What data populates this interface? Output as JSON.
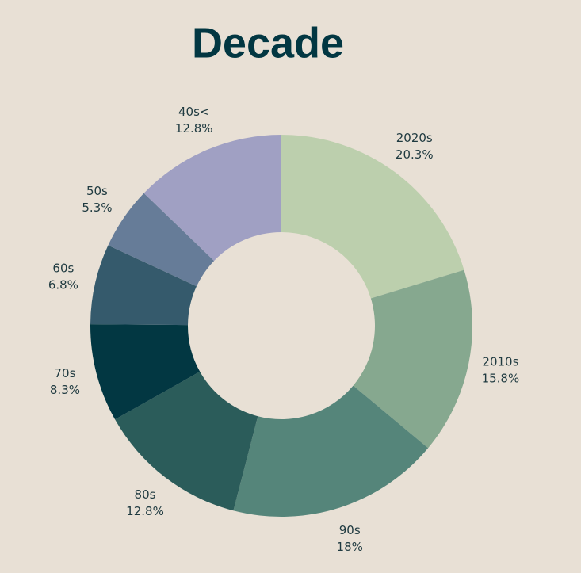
{
  "chart_data": {
    "type": "donut",
    "title": "Decade",
    "categories": [
      "2020s",
      "2010s",
      "90s",
      "80s",
      "70s",
      "60s",
      "50s",
      "40s<"
    ],
    "values": [
      20.3,
      15.8,
      18,
      12.8,
      8.3,
      6.8,
      5.3,
      12.8
    ],
    "value_labels": [
      "20.3%",
      "15.8%",
      "18%",
      "12.8%",
      "8.3%",
      "6.8%",
      "5.3%",
      "12.8%"
    ],
    "colors": [
      "#bccfad",
      "#86a88f",
      "#55857a",
      "#2b5c5a",
      "#023742",
      "#355a6c",
      "#667c98",
      "#a0a0c3"
    ]
  }
}
